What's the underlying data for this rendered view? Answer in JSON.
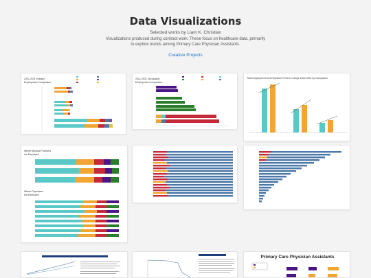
{
  "header": {
    "title": "Data Visualizations",
    "subtitle": "Selected works by Liam K. Christian",
    "desc_line1": "Visualizations produced during contract work. These focus on healthcare data, primarily",
    "desc_line2": "to explore trends among Primary Care Physician Assistants.",
    "link": "Creative Projects"
  },
  "cards": {
    "c1_title_1": "2021-2031 Industry",
    "c1_title_2": "Employment Comparison",
    "c2_title_1": "2021-2031 Occupation",
    "c2_title_2": "Employment Comparison",
    "c3_title": "Total Employment and Projected Percent Change 2021-2031 by Occupation",
    "c4_title_1": "Where Medical Providers",
    "c4_title_2": "are Employed",
    "c4_title_3": "Where Physicians",
    "c4_title_4": "are Employed",
    "c9_title": "Primary Care Physician Assistants"
  },
  "colors": {
    "teal": "#5bc8c8",
    "orange": "#f1a533",
    "purple": "#4b1585",
    "green": "#2a7d2a",
    "red": "#c42a3a",
    "blue": "#4c78a8",
    "navy": "#1f3d7a"
  }
}
